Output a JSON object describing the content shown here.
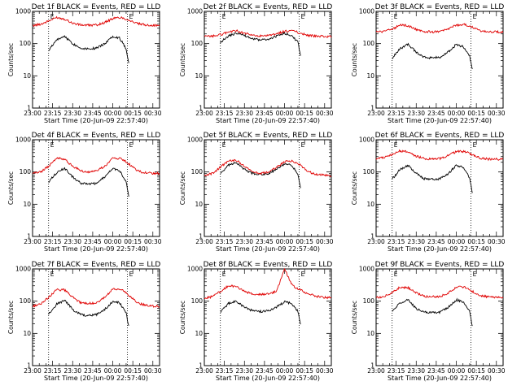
{
  "chart_data": [
    {
      "type": "line",
      "title": "Det 1f BLACK = Events, RED = LLD",
      "xlabel": "Start Time (20-Jun-09 22:57:40)",
      "ylabel": "Counts/sec",
      "yscale": "log",
      "ylim": [
        1,
        1000
      ],
      "xlim": [
        "23:00",
        "00:35"
      ],
      "x_ticks": [
        "23:00",
        "23:15",
        "23:30",
        "23:45",
        "00:00",
        "00:15",
        "00:30"
      ],
      "y_ticks": [
        "1",
        "10",
        "100",
        "1000"
      ],
      "markers": [
        {
          "label": "E",
          "time": "23:12",
          "value": 1000
        },
        {
          "label": "E",
          "time": "00:11",
          "value": 1000
        }
      ],
      "series": [
        {
          "color": "#000000",
          "x": [
            "23:12",
            "23:18",
            "23:24",
            "23:30",
            "23:36",
            "23:42",
            "23:48",
            "23:54",
            "00:00",
            "00:05",
            "00:10",
            "00:12"
          ],
          "values": [
            60,
            130,
            170,
            100,
            72,
            70,
            72,
            100,
            170,
            150,
            70,
            25
          ]
        },
        {
          "color": "#e00000",
          "x": [
            "23:00",
            "23:06",
            "23:12",
            "23:18",
            "23:24",
            "23:30",
            "23:36",
            "23:42",
            "23:48",
            "23:54",
            "00:00",
            "00:06",
            "00:12",
            "00:18",
            "00:24",
            "00:30",
            "00:35"
          ],
          "values": [
            360,
            400,
            500,
            650,
            580,
            430,
            380,
            370,
            380,
            450,
            600,
            650,
            540,
            420,
            380,
            370,
            360
          ]
        }
      ]
    },
    {
      "type": "line",
      "title": "Det 2f BLACK = Events, RED = LLD",
      "xlabel": "Start Time (20-Jun-09 22:57:40)",
      "ylabel": "Counts/sec",
      "yscale": "log",
      "ylim": [
        1,
        1000
      ],
      "xlim": [
        "23:00",
        "00:35"
      ],
      "x_ticks": [
        "23:00",
        "23:15",
        "23:30",
        "23:45",
        "00:00",
        "00:15",
        "00:30"
      ],
      "y_ticks": [
        "1",
        "10",
        "100",
        "1000"
      ],
      "markers": [
        {
          "label": "E",
          "time": "23:12",
          "value": 1000
        },
        {
          "label": "E",
          "time": "00:11",
          "value": 1000
        }
      ],
      "series": [
        {
          "color": "#000000",
          "x": [
            "23:12",
            "23:18",
            "23:24",
            "23:30",
            "23:36",
            "23:42",
            "23:48",
            "23:54",
            "00:00",
            "00:05",
            "00:10",
            "00:12"
          ],
          "values": [
            110,
            170,
            210,
            180,
            140,
            130,
            135,
            170,
            210,
            180,
            110,
            40
          ]
        },
        {
          "color": "#e00000",
          "x": [
            "23:00",
            "23:06",
            "23:12",
            "23:18",
            "23:24",
            "23:30",
            "23:36",
            "23:42",
            "23:48",
            "23:54",
            "00:00",
            "00:06",
            "00:12",
            "00:18",
            "00:24",
            "00:30",
            "00:35"
          ],
          "values": [
            165,
            170,
            190,
            230,
            250,
            210,
            180,
            170,
            175,
            200,
            240,
            250,
            210,
            180,
            170,
            165,
            165
          ]
        }
      ]
    },
    {
      "type": "line",
      "title": "Det 3f BLACK = Events, RED = LLD",
      "xlabel": "Start Time (20-Jun-09 22:57:40)",
      "ylabel": "Counts/sec",
      "yscale": "log",
      "ylim": [
        1,
        1000
      ],
      "xlim": [
        "23:00",
        "00:35"
      ],
      "x_ticks": [
        "23:00",
        "23:15",
        "23:30",
        "23:45",
        "00:00",
        "00:15",
        "00:30"
      ],
      "y_ticks": [
        "1",
        "10",
        "100",
        "1000"
      ],
      "markers": [
        {
          "label": "E",
          "time": "23:12",
          "value": 1000
        },
        {
          "label": "E",
          "time": "00:11",
          "value": 1000
        }
      ],
      "series": [
        {
          "color": "#000000",
          "x": [
            "23:12",
            "23:18",
            "23:24",
            "23:30",
            "23:36",
            "23:42",
            "23:48",
            "23:54",
            "00:00",
            "00:05",
            "00:10",
            "00:12"
          ],
          "values": [
            35,
            70,
            95,
            55,
            38,
            36,
            38,
            55,
            95,
            80,
            40,
            15
          ]
        },
        {
          "color": "#e00000",
          "x": [
            "23:00",
            "23:06",
            "23:12",
            "23:18",
            "23:24",
            "23:30",
            "23:36",
            "23:42",
            "23:48",
            "23:54",
            "00:00",
            "00:06",
            "00:12",
            "00:18",
            "00:24",
            "00:30",
            "00:35"
          ],
          "values": [
            230,
            240,
            280,
            380,
            360,
            270,
            240,
            230,
            235,
            280,
            380,
            390,
            320,
            250,
            235,
            230,
            230
          ]
        }
      ]
    },
    {
      "type": "line",
      "title": "Det 4f BLACK = Events, RED = LLD",
      "xlabel": "Start Time (20-Jun-09 22:57:40)",
      "ylabel": "Counts/sec",
      "yscale": "log",
      "ylim": [
        1,
        1000
      ],
      "xlim": [
        "23:00",
        "00:35"
      ],
      "x_ticks": [
        "23:00",
        "23:15",
        "23:30",
        "23:45",
        "00:00",
        "00:15",
        "00:30"
      ],
      "y_ticks": [
        "1",
        "10",
        "100",
        "1000"
      ],
      "markers": [
        {
          "label": "E",
          "time": "23:12",
          "value": 1000
        },
        {
          "label": "E",
          "time": "00:11",
          "value": 1000
        }
      ],
      "series": [
        {
          "color": "#000000",
          "x": [
            "23:12",
            "23:18",
            "23:24",
            "23:30",
            "23:36",
            "23:42",
            "23:48",
            "23:54",
            "00:00",
            "00:05",
            "00:10",
            "00:12"
          ],
          "values": [
            50,
            95,
            130,
            70,
            45,
            42,
            45,
            70,
            130,
            110,
            50,
            18
          ]
        },
        {
          "color": "#e00000",
          "x": [
            "23:00",
            "23:06",
            "23:12",
            "23:18",
            "23:24",
            "23:30",
            "23:36",
            "23:42",
            "23:48",
            "23:54",
            "00:00",
            "00:06",
            "00:12",
            "00:18",
            "00:24",
            "00:30",
            "00:35"
          ],
          "values": [
            90,
            100,
            150,
            270,
            250,
            150,
            110,
            100,
            110,
            150,
            260,
            270,
            180,
            110,
            95,
            90,
            90
          ]
        }
      ]
    },
    {
      "type": "line",
      "title": "Det 5f BLACK = Events, RED = LLD",
      "xlabel": "Start Time (20-Jun-09 22:57:40)",
      "ylabel": "Counts/sec",
      "yscale": "log",
      "ylim": [
        1,
        1000
      ],
      "xlim": [
        "23:00",
        "00:35"
      ],
      "x_ticks": [
        "23:00",
        "23:15",
        "23:30",
        "23:45",
        "00:00",
        "00:15",
        "00:30"
      ],
      "y_ticks": [
        "1",
        "10",
        "100",
        "1000"
      ],
      "markers": [
        {
          "label": "E",
          "time": "23:12",
          "value": 1000
        },
        {
          "label": "E",
          "time": "00:11",
          "value": 1000
        }
      ],
      "series": [
        {
          "color": "#000000",
          "x": [
            "23:12",
            "23:18",
            "23:24",
            "23:30",
            "23:36",
            "23:42",
            "23:48",
            "23:54",
            "00:00",
            "00:05",
            "00:10",
            "00:12"
          ],
          "values": [
            90,
            160,
            190,
            120,
            90,
            85,
            90,
            120,
            180,
            160,
            90,
            30
          ]
        },
        {
          "color": "#e00000",
          "x": [
            "23:00",
            "23:06",
            "23:12",
            "23:18",
            "23:24",
            "23:30",
            "23:36",
            "23:42",
            "23:48",
            "23:54",
            "00:00",
            "00:06",
            "00:12",
            "00:18",
            "00:24",
            "00:30",
            "00:35"
          ],
          "values": [
            75,
            90,
            140,
            220,
            230,
            150,
            100,
            90,
            100,
            140,
            210,
            220,
            160,
            100,
            85,
            80,
            75
          ]
        }
      ]
    },
    {
      "type": "line",
      "title": "Det 6f BLACK = Events, RED = LLD",
      "xlabel": "Start Time (20-Jun-09 22:57:40)",
      "ylabel": "Counts/sec",
      "yscale": "log",
      "ylim": [
        1,
        1000
      ],
      "xlim": [
        "23:00",
        "00:35"
      ],
      "x_ticks": [
        "23:00",
        "23:15",
        "23:30",
        "23:45",
        "00:00",
        "00:15",
        "00:30"
      ],
      "y_ticks": [
        "1",
        "10",
        "100",
        "1000"
      ],
      "markers": [
        {
          "label": "E",
          "time": "23:12",
          "value": 1000
        },
        {
          "label": "E",
          "time": "00:11",
          "value": 1000
        }
      ],
      "series": [
        {
          "color": "#000000",
          "x": [
            "23:12",
            "23:18",
            "23:24",
            "23:30",
            "23:36",
            "23:42",
            "23:48",
            "23:54",
            "00:00",
            "00:05",
            "00:10",
            "00:12"
          ],
          "values": [
            60,
            120,
            160,
            90,
            62,
            60,
            62,
            90,
            160,
            140,
            65,
            22
          ]
        },
        {
          "color": "#e00000",
          "x": [
            "23:00",
            "23:06",
            "23:12",
            "23:18",
            "23:24",
            "23:30",
            "23:36",
            "23:42",
            "23:48",
            "23:54",
            "00:00",
            "00:06",
            "00:12",
            "00:18",
            "00:24",
            "00:30",
            "00:35"
          ],
          "values": [
            260,
            280,
            350,
            450,
            420,
            310,
            260,
            250,
            260,
            320,
            430,
            440,
            340,
            270,
            250,
            250,
            250
          ]
        }
      ]
    },
    {
      "type": "line",
      "title": "Det 7f BLACK = Events, RED = LLD",
      "xlabel": "Start Time (20-Jun-09 22:57:40)",
      "ylabel": "Counts/sec",
      "yscale": "log",
      "ylim": [
        1,
        1000
      ],
      "xlim": [
        "23:00",
        "00:35"
      ],
      "x_ticks": [
        "23:00",
        "23:15",
        "23:30",
        "23:45",
        "00:00",
        "00:15",
        "00:30"
      ],
      "y_ticks": [
        "1",
        "10",
        "100",
        "1000"
      ],
      "markers": [
        {
          "label": "E",
          "time": "23:12",
          "value": 1000
        },
        {
          "label": "E",
          "time": "00:11",
          "value": 1000
        }
      ],
      "series": [
        {
          "color": "#000000",
          "x": [
            "23:12",
            "23:18",
            "23:24",
            "23:30",
            "23:36",
            "23:42",
            "23:48",
            "23:54",
            "00:00",
            "00:05",
            "00:10",
            "00:12"
          ],
          "values": [
            40,
            80,
            105,
            55,
            38,
            36,
            38,
            55,
            100,
            90,
            42,
            16
          ]
        },
        {
          "color": "#e00000",
          "x": [
            "23:00",
            "23:06",
            "23:12",
            "23:18",
            "23:24",
            "23:30",
            "23:36",
            "23:42",
            "23:48",
            "23:54",
            "00:00",
            "00:06",
            "00:12",
            "00:18",
            "00:24",
            "00:30",
            "00:35"
          ],
          "values": [
            70,
            80,
            130,
            230,
            220,
            130,
            90,
            85,
            90,
            130,
            230,
            240,
            150,
            90,
            75,
            70,
            70
          ]
        }
      ]
    },
    {
      "type": "line",
      "title": "Det 8f BLACK = Events, RED = LLD",
      "xlabel": "Start Time (20-Jun-09 22:57:40)",
      "ylabel": "Counts/sec",
      "yscale": "log",
      "ylim": [
        1,
        1000
      ],
      "xlim": [
        "23:00",
        "00:35"
      ],
      "x_ticks": [
        "23:00",
        "23:15",
        "23:30",
        "23:45",
        "00:00",
        "00:15",
        "00:30"
      ],
      "y_ticks": [
        "1",
        "10",
        "100",
        "1000"
      ],
      "markers": [
        {
          "label": "E",
          "time": "23:12",
          "value": 1000
        },
        {
          "label": "E",
          "time": "00:11",
          "value": 1000
        }
      ],
      "series": [
        {
          "color": "#000000",
          "x": [
            "23:12",
            "23:18",
            "23:24",
            "23:30",
            "23:36",
            "23:42",
            "23:48",
            "23:54",
            "00:00",
            "00:05",
            "00:10",
            "00:12"
          ],
          "values": [
            45,
            85,
            100,
            65,
            50,
            48,
            50,
            65,
            95,
            85,
            50,
            18
          ]
        },
        {
          "color": "#e00000",
          "x": [
            "23:00",
            "23:06",
            "23:12",
            "23:18",
            "23:24",
            "23:30",
            "23:36",
            "23:42",
            "23:48",
            "23:54",
            "00:00",
            "00:06",
            "00:12",
            "00:18",
            "00:24",
            "00:30",
            "00:35"
          ],
          "values": [
            120,
            140,
            200,
            300,
            280,
            200,
            170,
            160,
            170,
            200,
            1000,
            300,
            220,
            170,
            140,
            130,
            130
          ]
        }
      ]
    },
    {
      "type": "line",
      "title": "Det 9f BLACK = Events, RED = LLD",
      "xlabel": "Start Time (20-Jun-09 22:57:40)",
      "ylabel": "Counts/sec",
      "yscale": "log",
      "ylim": [
        1,
        1000
      ],
      "xlim": [
        "23:00",
        "00:35"
      ],
      "x_ticks": [
        "23:00",
        "23:15",
        "23:30",
        "23:45",
        "00:00",
        "00:15",
        "00:30"
      ],
      "y_ticks": [
        "1",
        "10",
        "100",
        "1000"
      ],
      "markers": [
        {
          "label": "E",
          "time": "23:12",
          "value": 1000
        },
        {
          "label": "E",
          "time": "00:11",
          "value": 1000
        }
      ],
      "series": [
        {
          "color": "#000000",
          "x": [
            "23:12",
            "23:18",
            "23:24",
            "23:30",
            "23:36",
            "23:42",
            "23:48",
            "23:54",
            "00:00",
            "00:05",
            "00:10",
            "00:12"
          ],
          "values": [
            45,
            90,
            110,
            60,
            45,
            44,
            46,
            65,
            110,
            95,
            48,
            16
          ]
        },
        {
          "color": "#e00000",
          "x": [
            "23:00",
            "23:06",
            "23:12",
            "23:18",
            "23:24",
            "23:30",
            "23:36",
            "23:42",
            "23:48",
            "23:54",
            "00:00",
            "00:06",
            "00:12",
            "00:18",
            "00:24",
            "00:30",
            "00:35"
          ],
          "values": [
            130,
            140,
            190,
            270,
            260,
            180,
            140,
            135,
            140,
            180,
            270,
            280,
            200,
            150,
            135,
            130,
            130
          ]
        }
      ]
    }
  ]
}
